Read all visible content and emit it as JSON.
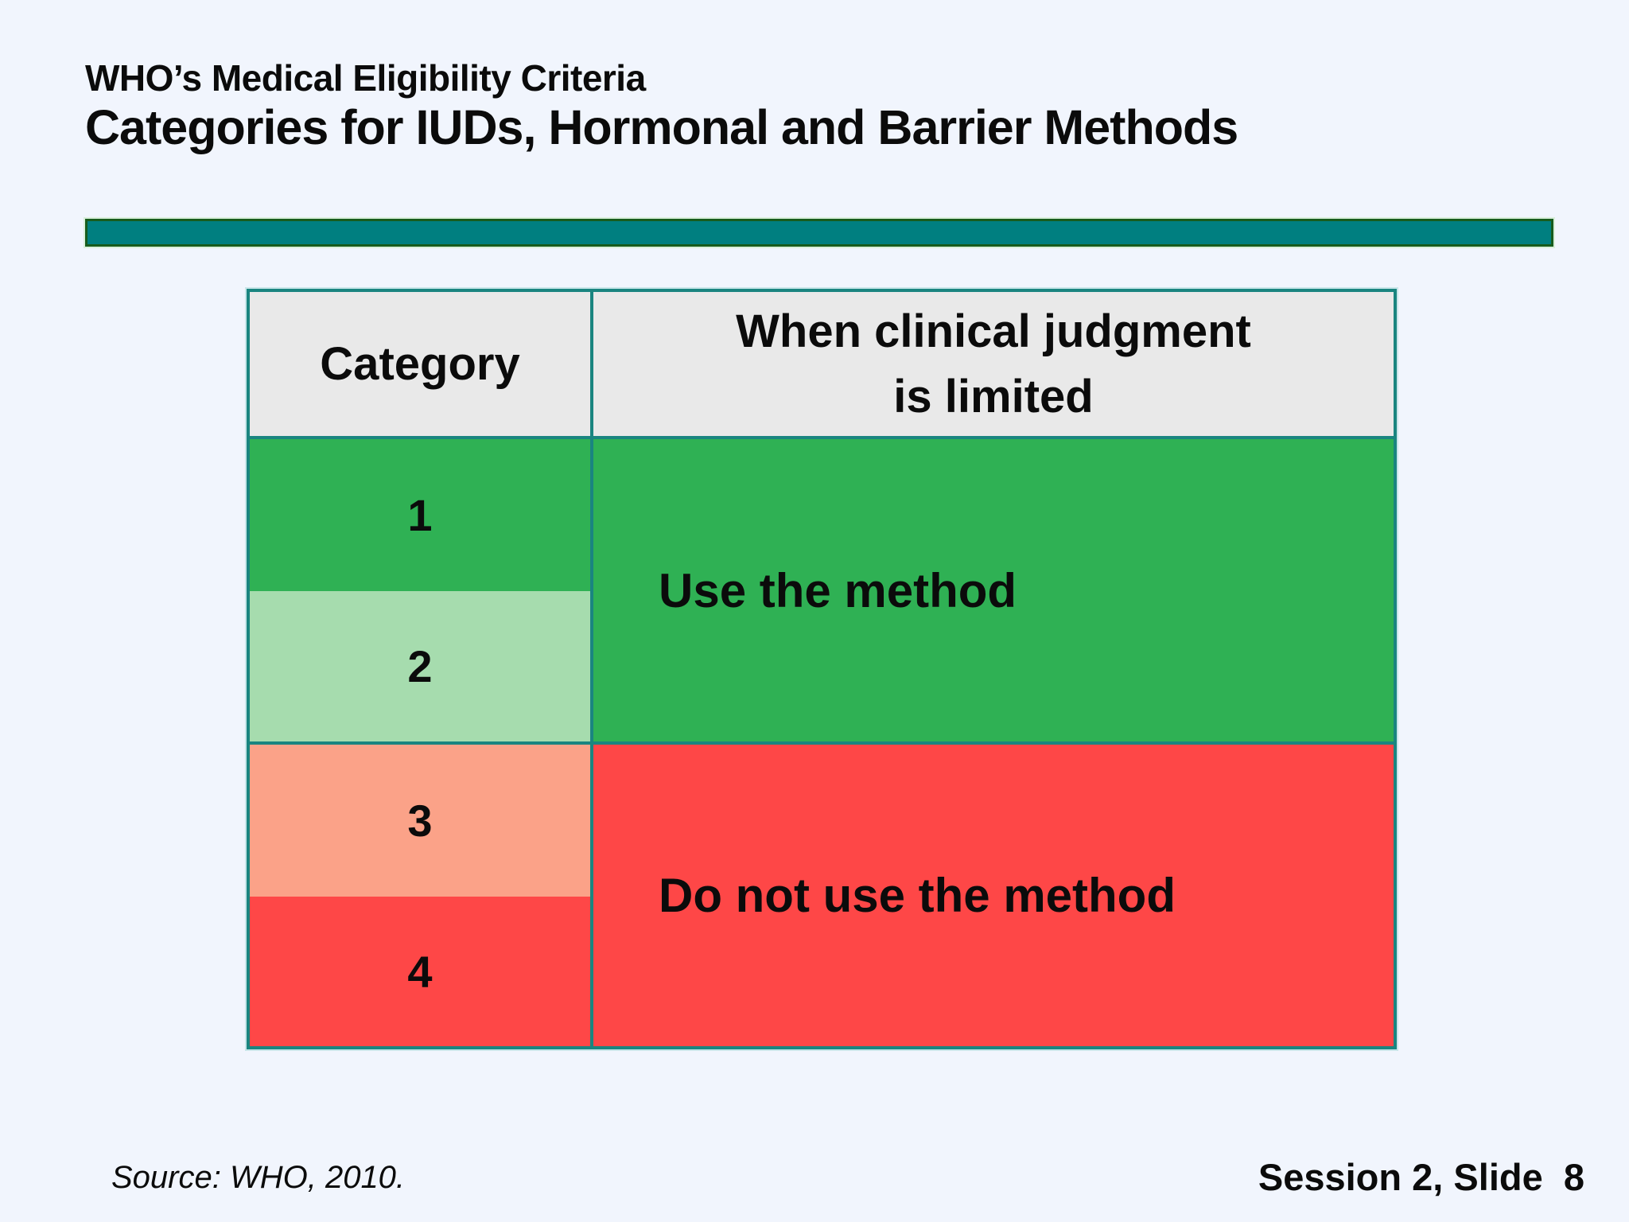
{
  "slide": {
    "title_line1": "WHO’s Medical Eligibility Criteria",
    "title_line2": "Categories for IUDs, Hormonal and Barrier Methods",
    "source_note": "Source: WHO, 2010.",
    "slide_label": "Session 2, Slide  8"
  },
  "table": {
    "header": {
      "category": "Category",
      "judgment_line1": "When clinical judgment",
      "judgment_line2": "is limited"
    },
    "categories": [
      {
        "label": "1",
        "color": "#2fb154"
      },
      {
        "label": "2",
        "color": "#a6dcae"
      },
      {
        "label": "3",
        "color": "#fba288"
      },
      {
        "label": "4",
        "color": "#fe4747"
      }
    ],
    "outcomes": [
      {
        "label": "Use the method",
        "color": "#2fb154"
      },
      {
        "label": "Do not use the method",
        "color": "#fe4747"
      }
    ]
  },
  "colors": {
    "background": "#f1f5fd",
    "divider_bar_fill": "#007f80",
    "divider_bar_border": "#175c1d",
    "table_border": "#1a8580",
    "header_cell_bg": "#e9e9e9",
    "text": "#0b0b0b"
  }
}
